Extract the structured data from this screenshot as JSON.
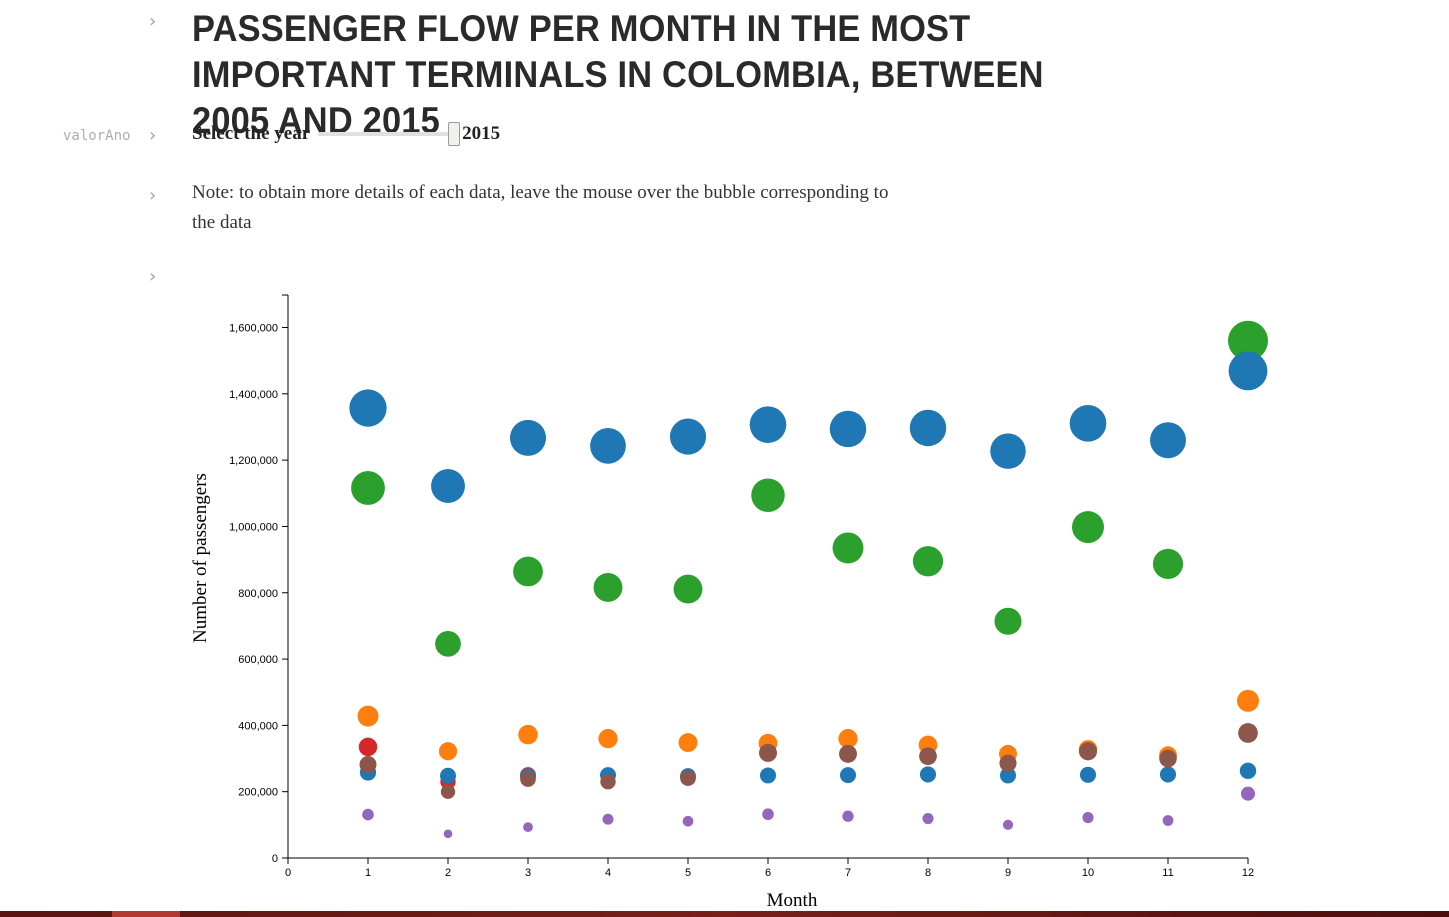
{
  "page": {
    "title": "PASSENGER FLOW PER MONTH IN THE MOST IMPORTANT TERMINALS IN COLOMBIA, BETWEEN 2005 AND 2015",
    "variable_label": "valorAno",
    "slider_label": "Select the year",
    "slider_value": "2015",
    "slider_fraction": 1.0,
    "note": "Note: to obtain more details of each data, leave the mouse over the bubble corresponding to the data",
    "gutter_arrow": "›"
  },
  "chart_data": {
    "type": "scatter",
    "title": "",
    "xlabel": "Month",
    "ylabel": "Number of passengers",
    "xlim": [
      0,
      12
    ],
    "ylim": [
      0,
      1700000
    ],
    "x_ticks": [
      0,
      1,
      2,
      3,
      4,
      5,
      6,
      7,
      8,
      9,
      10,
      11,
      12
    ],
    "y_ticks": [
      0,
      200000,
      400000,
      600000,
      800000,
      1000000,
      1200000,
      1400000,
      1600000
    ],
    "y_tick_labels": [
      "0",
      "200,000",
      "400,000",
      "600,000",
      "800,000",
      "1,000,000",
      "1,200,000",
      "1,400,000",
      "1,600,000"
    ],
    "bubble_size": "proportional to value",
    "series": [
      {
        "color": "#d62728",
        "points": [
          [
            1,
            335000
          ],
          [
            2,
            230000
          ],
          [
            3,
            250000
          ]
        ]
      },
      {
        "color": "#ff7f0e",
        "points": [
          [
            1,
            428000
          ],
          [
            2,
            322000
          ],
          [
            3,
            372000
          ],
          [
            4,
            360000
          ],
          [
            5,
            348000
          ],
          [
            6,
            346000
          ],
          [
            7,
            360000
          ],
          [
            8,
            341000
          ],
          [
            9,
            314000
          ],
          [
            10,
            328000
          ],
          [
            11,
            310000
          ],
          [
            12,
            474000
          ]
        ]
      },
      {
        "color": "#1f77b4",
        "points": [
          [
            1,
            258000
          ],
          [
            2,
            248000
          ],
          [
            3,
            246000
          ],
          [
            4,
            250000
          ],
          [
            5,
            247000
          ],
          [
            6,
            249000
          ],
          [
            7,
            250000
          ],
          [
            8,
            252000
          ],
          [
            9,
            249000
          ],
          [
            10,
            251000
          ],
          [
            11,
            252000
          ],
          [
            12,
            263000
          ]
        ]
      },
      {
        "color": "#8c564b",
        "points": [
          [
            1,
            282000
          ],
          [
            2,
            200000
          ],
          [
            3,
            238000
          ],
          [
            4,
            230000
          ],
          [
            5,
            241000
          ],
          [
            6,
            317000
          ],
          [
            7,
            314000
          ],
          [
            8,
            307000
          ],
          [
            9,
            286000
          ],
          [
            10,
            322000
          ],
          [
            11,
            300000
          ],
          [
            12,
            377000
          ]
        ]
      },
      {
        "color": "#9467bd",
        "points": [
          [
            1,
            131000
          ],
          [
            2,
            73000
          ],
          [
            3,
            93000
          ],
          [
            4,
            117000
          ],
          [
            5,
            111000
          ],
          [
            6,
            132000
          ],
          [
            7,
            126000
          ],
          [
            8,
            119000
          ],
          [
            9,
            100000
          ],
          [
            10,
            122000
          ],
          [
            11,
            113000
          ],
          [
            12,
            194000
          ]
        ]
      },
      {
        "color": "#2ca02c",
        "points": [
          [
            1,
            1116000
          ],
          [
            2,
            646000
          ],
          [
            3,
            864000
          ],
          [
            4,
            816000
          ],
          [
            5,
            811000
          ],
          [
            6,
            1094000
          ],
          [
            7,
            935000
          ],
          [
            8,
            895000
          ],
          [
            9,
            714000
          ],
          [
            10,
            998000
          ],
          [
            11,
            887000
          ],
          [
            12,
            1560000
          ]
        ]
      },
      {
        "color": "#1f77b4",
        "points": [
          [
            1,
            1357000
          ],
          [
            2,
            1122000
          ],
          [
            3,
            1267000
          ],
          [
            4,
            1243000
          ],
          [
            5,
            1271000
          ],
          [
            6,
            1307000
          ],
          [
            7,
            1294000
          ],
          [
            8,
            1297000
          ],
          [
            9,
            1227000
          ],
          [
            10,
            1311000
          ],
          [
            11,
            1260000
          ],
          [
            12,
            1469000
          ]
        ]
      }
    ]
  }
}
